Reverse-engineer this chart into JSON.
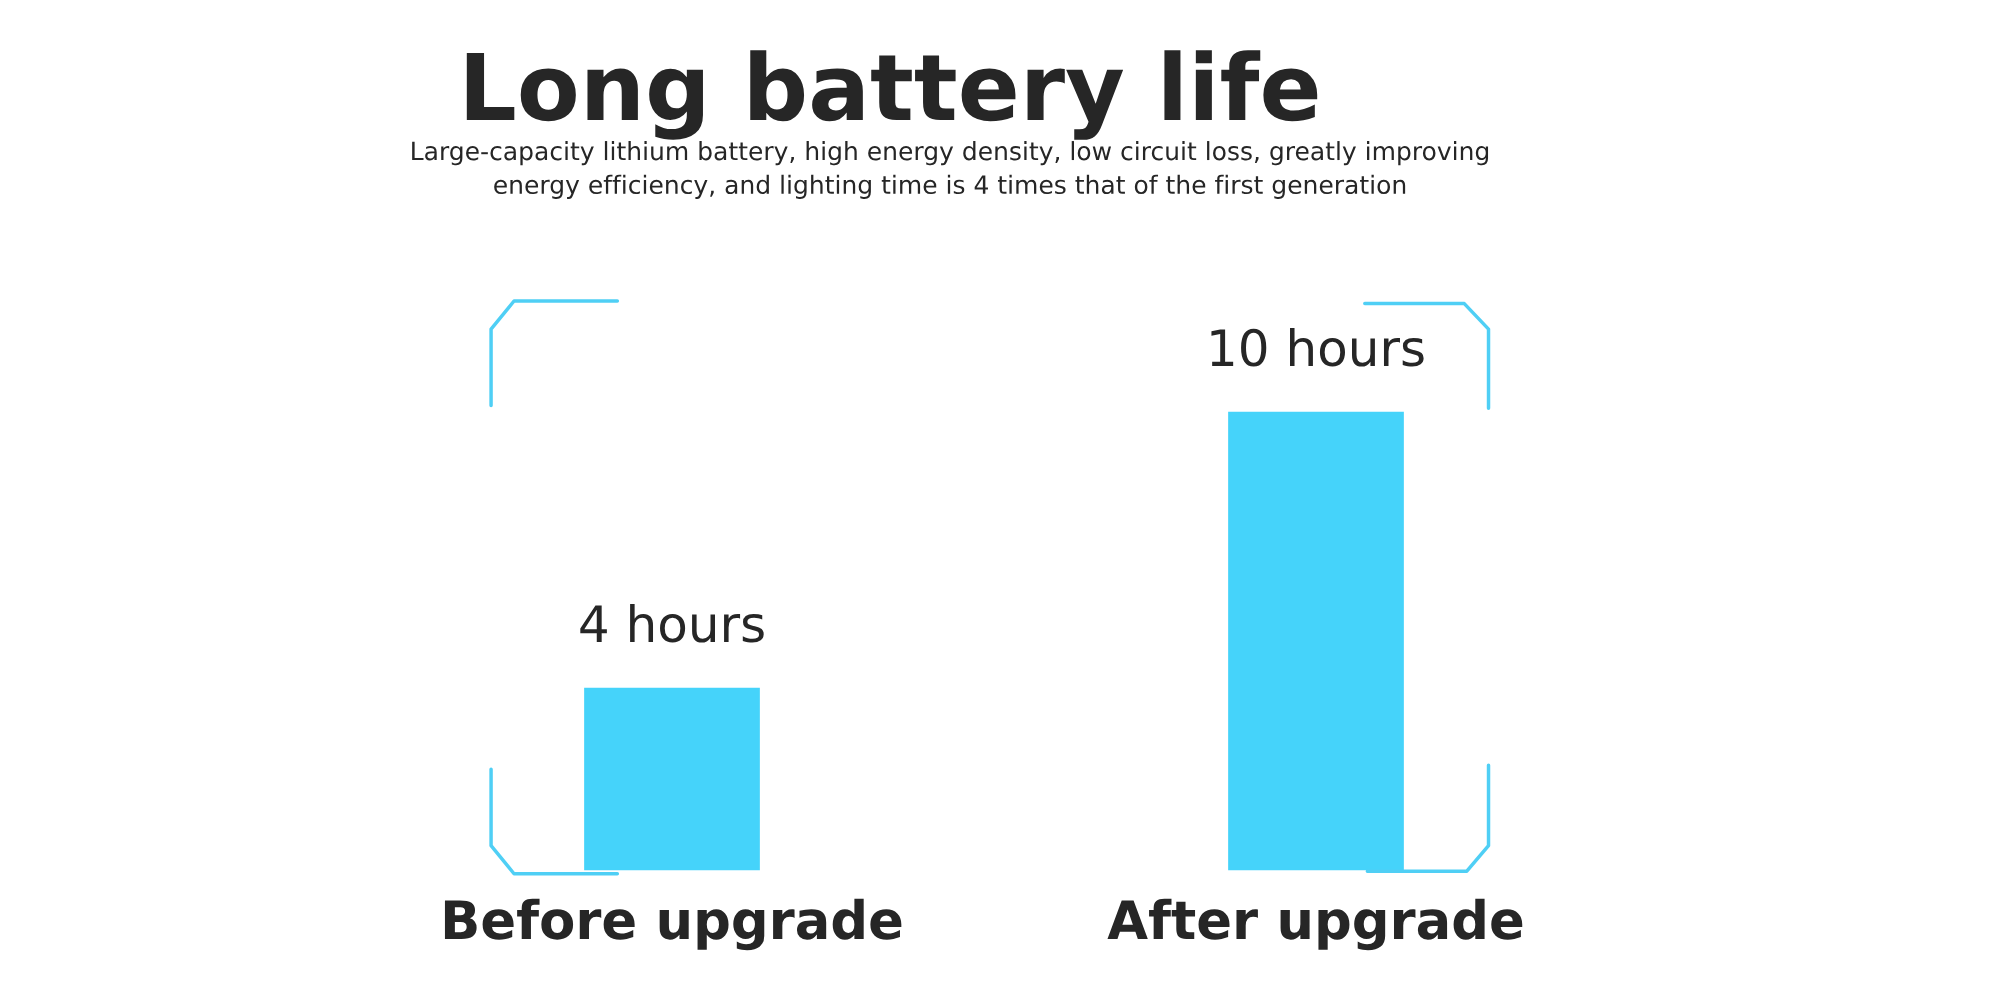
{
  "chart_data": {
    "type": "bar",
    "title": "Long battery life",
    "subtitle": "Large-capacity lithium battery, high energy density, low circuit loss, greatly improving\nenergy efficiency, and lighting time is 4 times that of the first generation",
    "categories": [
      "Before upgrade",
      "After upgrade"
    ],
    "values": [
      4,
      10
    ],
    "value_labels": [
      "4 hours",
      "10 hours"
    ],
    "color": "#45d3fa"
  }
}
